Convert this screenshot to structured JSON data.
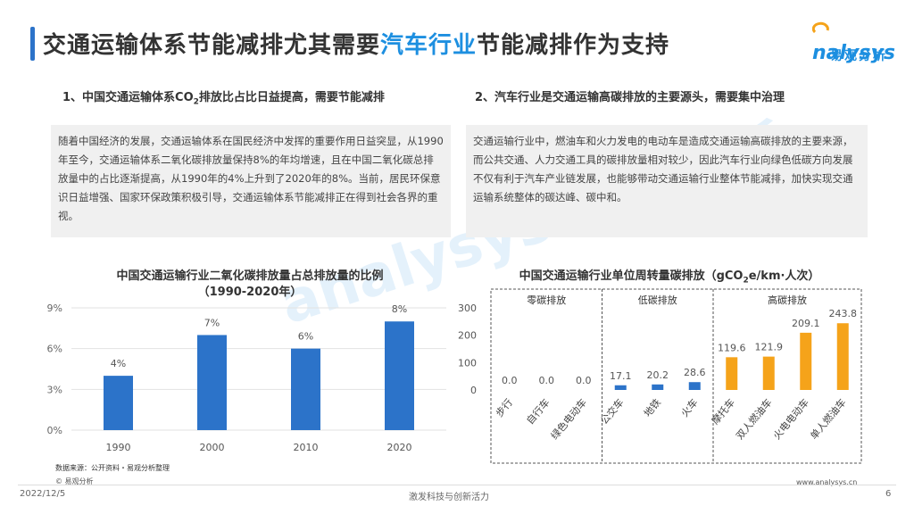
{
  "header": {
    "title_part1": "交通运输体系节能减排尤其需要",
    "title_highlight": "汽车行业",
    "title_part2": "节能减排作为支持",
    "logo_text": "nalysys",
    "logo_cn": "易观分析"
  },
  "sections": {
    "left_head_a": "1、中国交通运输体系CO",
    "left_head_sub": "2",
    "left_head_b": "排放比占比日益提高，需要节能减排",
    "left_text": "随着中国经济的发展，交通运输体系在国民经济中发挥的重要作用日益突显，从1990年至今，交通运输体系二氧化碳排放量保持8%的年均增速，且在中国二氧化碳总排放量中的占比逐渐提高，从1990年的4%上升到了2020年的8%。当前，居民环保意识日益增强、国家环保政策积极引导，交通运输体系节能减排正在得到社会各界的重视。",
    "right_head": "2、汽车行业是交通运输高碳排放的主要源头，需要集中治理",
    "right_text": "交通运输行业中，燃油车和火力发电的电动车是造成交通运输高碳排放的主要来源，而公共交通、人力交通工具的碳排放量相对较少，因此汽车行业向绿色低碳方向发展不仅有利于汽车产业链发展，也能够带动交通运输行业整体节能减排，加快实现交通运输系统整体的碳达峰、碳中和。"
  },
  "chart_data": [
    {
      "type": "bar",
      "title": "中国交通运输行业二氧化碳排放量占总排放量的比例",
      "subtitle": "（1990-2020年）",
      "categories": [
        "1990",
        "2000",
        "2010",
        "2020"
      ],
      "values": [
        4,
        7,
        6,
        8
      ],
      "value_labels": [
        "4%",
        "7%",
        "6%",
        "8%"
      ],
      "yticks": [
        "0%",
        "3%",
        "6%",
        "9%"
      ],
      "ylim": [
        0,
        9
      ],
      "bar_color": "#2c73c9"
    },
    {
      "type": "bar",
      "title_a": "中国交通运输行业单位周转量碳排放（gCO",
      "title_sub": "2",
      "title_b": "e/km·人次）",
      "groups": [
        {
          "name": "零碳排放",
          "categories": [
            "步行",
            "自行车",
            "绿色电动车"
          ],
          "values": [
            0.0,
            0.0,
            0.0
          ],
          "labels": [
            "0.0",
            "0.0",
            "0.0"
          ]
        },
        {
          "name": "低碳排放",
          "categories": [
            "公交车",
            "地铁",
            "火车"
          ],
          "values": [
            17.1,
            20.2,
            28.6
          ],
          "labels": [
            "17.1",
            "20.2",
            "28.6"
          ]
        },
        {
          "name": "高碳排放",
          "categories": [
            "摩托车",
            "双人燃油车",
            "火电电动车",
            "单人燃油车"
          ],
          "values": [
            119.6,
            121.9,
            209.1,
            243.8
          ],
          "labels": [
            "119.6",
            "121.9",
            "209.1",
            "243.8"
          ]
        }
      ],
      "yticks": [
        "0",
        "100",
        "200",
        "300"
      ],
      "ylim": [
        0,
        300
      ],
      "low_color": "#2c73c9",
      "high_color": "#f5a31a"
    }
  ],
  "footer": {
    "source": "数据来源：公开资料・易观分析整理",
    "logo": "© 易观分析",
    "url": "www.analysys.cn",
    "date": "2022/12/5",
    "slogan": "激发科技与创新活力",
    "page": "6"
  },
  "watermark": "analysys 易观分析"
}
